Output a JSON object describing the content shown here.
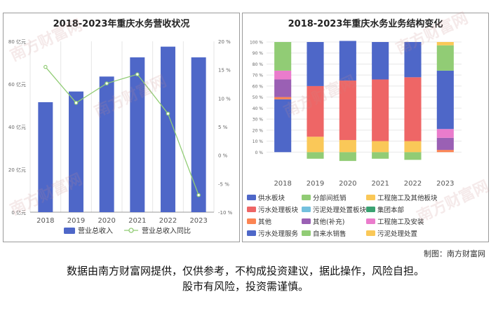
{
  "watermark": "南方财富网",
  "credit": "制图：南方财富网",
  "disclaimer": {
    "line1": "数据由南方财富网提供，仅供参考，不构成投资建议，据此操作，风险自担。",
    "line2": "股市有风险，投资需谨慎。"
  },
  "chart_data": [
    {
      "type": "bar+line",
      "title": "2018-2023年重庆水务营收状况",
      "categories": [
        "2018",
        "2019",
        "2020",
        "2021",
        "2022",
        "2023"
      ],
      "y_left": {
        "ticks": [
          "0 亿元",
          "20 亿元",
          "40 亿元",
          "60 亿元",
          "80 亿元"
        ],
        "range": [
          0,
          80
        ]
      },
      "y_right": {
        "ticks": [
          "-10 %",
          "-5 %",
          "0 %",
          "5 %",
          "10 %",
          "15 %",
          "20 %"
        ],
        "range": [
          -10,
          20
        ]
      },
      "series": [
        {
          "name": "营业总收入",
          "type": "bar",
          "axis": "left",
          "color": "#4e67c8",
          "values": [
            51.5,
            56.5,
            63.5,
            72.5,
            77.5,
            72.5
          ]
        },
        {
          "name": "营业总收入同比",
          "type": "line",
          "axis": "right",
          "color": "#91cc75",
          "values": [
            15.5,
            9.2,
            12.6,
            14.2,
            7.3,
            -7.0
          ]
        }
      ],
      "legend_position": "bottom"
    },
    {
      "type": "stacked-bar",
      "title": "2018-2023年重庆水务业务结构变化",
      "categories": [
        "2018",
        "2019",
        "2020",
        "2021",
        "2022",
        "2023"
      ],
      "y": {
        "ticks": [
          "0 %",
          "10 %",
          "20 %",
          "30 %",
          "40 %",
          "50 %",
          "60 %",
          "70 %",
          "80 %",
          "90 %",
          "100 %"
        ],
        "range": [
          -10,
          100
        ]
      },
      "series": [
        {
          "name": "供水板块",
          "color": "#4e67c8",
          "values": [
            48,
            0,
            0,
            0,
            0,
            0
          ]
        },
        {
          "name": "分部间抵销",
          "color": "#91cc75",
          "values": [
            0,
            -6,
            -8,
            -6,
            -7,
            0
          ]
        },
        {
          "name": "工程施工及其他板块",
          "color": "#fac858",
          "values": [
            0,
            14,
            11,
            10,
            10,
            0
          ]
        },
        {
          "name": "污水处理板块",
          "color": "#ee6666",
          "values": [
            0,
            46,
            54,
            56,
            58,
            0
          ]
        },
        {
          "name": "污泥处理处置板块",
          "color": "#73c0de",
          "values": [
            0,
            0,
            0,
            0,
            0,
            0
          ]
        },
        {
          "name": "集团本部",
          "color": "#3ba272",
          "values": [
            0,
            0,
            0,
            0,
            0,
            0
          ]
        },
        {
          "name": "其他",
          "color": "#fc8452",
          "values": [
            2,
            0,
            0,
            0,
            0,
            2
          ]
        },
        {
          "name": "其他(补充)",
          "color": "#9a60b4",
          "values": [
            16,
            0,
            0,
            0,
            0,
            11
          ]
        },
        {
          "name": "工程施工及安装",
          "color": "#ea7ccc",
          "values": [
            8,
            0,
            0,
            0,
            0,
            8
          ]
        },
        {
          "name": "污水处理服务",
          "color": "#4e67c8",
          "values": [
            0,
            40,
            36,
            34,
            32,
            53
          ]
        },
        {
          "name": "自来水销售",
          "color": "#91cc75",
          "values": [
            26,
            0,
            0,
            0,
            0,
            23
          ]
        },
        {
          "name": "污泥处理处置",
          "color": "#fac858",
          "values": [
            0,
            0,
            0,
            0,
            0,
            3
          ]
        }
      ],
      "legend_position": "bottom"
    }
  ]
}
